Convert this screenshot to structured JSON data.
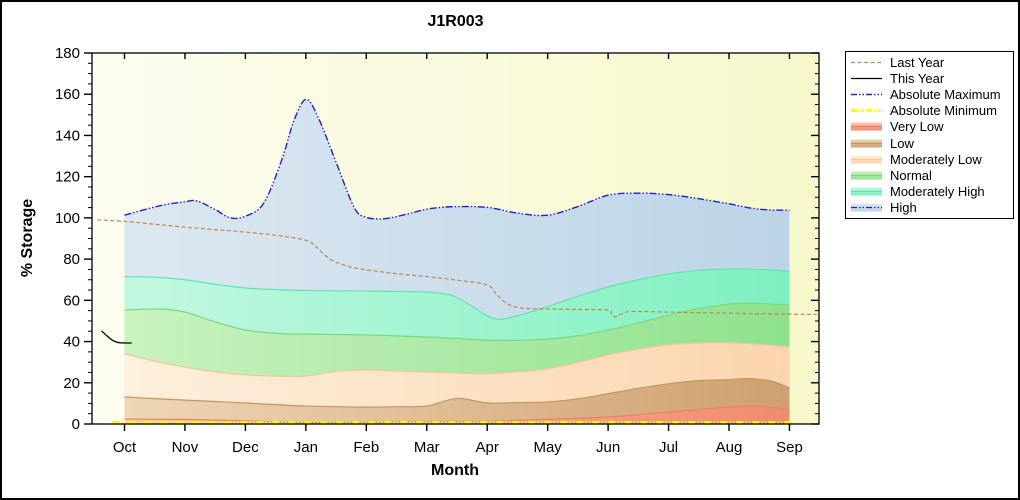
{
  "title": "J1R003",
  "chart_data": {
    "type": "area",
    "title": "J1R003",
    "xlabel": "Month",
    "ylabel": "% Storage",
    "x_categories": [
      "Oct",
      "Nov",
      "Dec",
      "Jan",
      "Feb",
      "Mar",
      "Apr",
      "May",
      "Jun",
      "Jul",
      "Aug",
      "Sep"
    ],
    "ylim": [
      0,
      180
    ],
    "y_tick_step": 20,
    "y_minor_tick_step": 5,
    "grid": false,
    "legend_position": "outside-right",
    "background_gradient": [
      "#fdfdf0",
      "#f8f8cc"
    ],
    "axis_color": "#000000",
    "bands": [
      {
        "name": "Very Low",
        "color_left": "#fbc9b6",
        "color_right": "#f08b6e",
        "edge_color": "#ee8163",
        "x": [
          0,
          1,
          2,
          3,
          4,
          5,
          6,
          7,
          8,
          9,
          10,
          10.5,
          11
        ],
        "top": [
          2.4,
          2.2,
          1.5,
          0.8,
          1.0,
          1.2,
          1.3,
          2.3,
          3.4,
          5.8,
          8.2,
          8.6,
          7.1
        ]
      },
      {
        "name": "Low",
        "color_left": "#eed6b6",
        "color_right": "#cfa070",
        "edge_color": "#c3955f",
        "x": [
          0,
          0.5,
          1,
          1.5,
          2,
          2.5,
          3,
          3.5,
          4,
          4.5,
          5,
          5.5,
          6,
          6.5,
          7,
          7.5,
          8,
          8.5,
          9,
          9.5,
          10,
          10.3,
          10.7,
          11
        ],
        "top": [
          13.1,
          12.3,
          11.6,
          10.9,
          10.2,
          9.4,
          8.7,
          8.4,
          8.2,
          8.4,
          8.7,
          12.4,
          10.2,
          10.4,
          10.7,
          12.2,
          14.7,
          17.3,
          19.5,
          21,
          21.5,
          22,
          20.8,
          17.5
        ]
      },
      {
        "name": "Moderately Low",
        "color_left": "#fdf0dd",
        "color_right": "#fbd5ad",
        "edge_color": "#f3c697",
        "x": [
          0,
          0.5,
          1,
          1.5,
          2,
          2.5,
          3,
          3.5,
          4,
          4.5,
          5,
          5.5,
          6,
          6.5,
          7,
          7.5,
          8,
          8.5,
          9,
          9.5,
          10,
          10.5,
          11
        ],
        "top": [
          34.1,
          30.5,
          27.6,
          25.3,
          23.9,
          23.2,
          23.3,
          25.6,
          26.2,
          25.7,
          25.2,
          24.7,
          24.4,
          25.3,
          26.8,
          29.9,
          33.5,
          36.3,
          38.4,
          39.3,
          39.4,
          38.6,
          37.3
        ]
      },
      {
        "name": "Normal",
        "color_left": "#c9f2bf",
        "color_right": "#8ee28c",
        "edge_color": "#7fd67e",
        "x": [
          0,
          0.6,
          1,
          1.5,
          2,
          2.5,
          3,
          4,
          5,
          5.5,
          6,
          6.5,
          7,
          7.5,
          8,
          8.5,
          9,
          9.5,
          10,
          10.4,
          11
        ],
        "top": [
          55.3,
          55.8,
          54.3,
          49.5,
          45.6,
          44,
          43.6,
          43.2,
          42.2,
          41.5,
          40.7,
          40.6,
          41.2,
          42.8,
          45.6,
          49,
          52.8,
          56,
          58.2,
          58.6,
          57.7
        ]
      },
      {
        "name": "Moderately High",
        "color_left": "#c2f8e1",
        "color_right": "#7df0c0",
        "edge_color": "#5fe5ad",
        "x": [
          0,
          0.5,
          1,
          1.5,
          2,
          2.5,
          3,
          3.5,
          4,
          4.5,
          5,
          5.4,
          5.7,
          6,
          6.2,
          6.5,
          7,
          7.5,
          8,
          8.5,
          9,
          9.5,
          10,
          10.5,
          11
        ],
        "top": [
          71.5,
          71.2,
          70,
          67.8,
          66,
          65.2,
          64.8,
          64.6,
          64.5,
          64.3,
          64,
          62.5,
          58,
          52.5,
          50.8,
          52.5,
          57,
          62,
          66.5,
          70,
          72.8,
          74.5,
          75.2,
          75,
          74.2
        ]
      },
      {
        "name": "High",
        "color_left": "#dce8f1",
        "color_right": "#bcd4e6",
        "edge_color": null,
        "x": [
          0,
          0.6,
          1,
          1.2,
          1.5,
          1.75,
          2,
          2.3,
          2.6,
          2.8,
          3,
          3.2,
          3.5,
          3.8,
          4,
          4.3,
          4.7,
          5,
          5.4,
          6,
          6.5,
          7,
          7.5,
          8,
          8.5,
          9,
          9.5,
          10,
          10.5,
          11
        ],
        "top": [
          101.3,
          106,
          107.8,
          108.2,
          104,
          100,
          100.8,
          107,
          128,
          147,
          157.5,
          149,
          127,
          105,
          100.3,
          99.6,
          102,
          104.2,
          105.4,
          105.1,
          102.3,
          101.3,
          105.5,
          111,
          112,
          111.3,
          109.3,
          106.8,
          104.2,
          103.7
        ]
      }
    ],
    "lines": [
      {
        "name": "Absolute Minimum",
        "color": "#ffff00",
        "width": 3,
        "dash": "dash-dot-dot",
        "x": [
          -0.2,
          11.05
        ],
        "y": [
          0.7,
          0.7
        ]
      },
      {
        "name": "Last Year",
        "color": "#bf8a52",
        "width": 1.2,
        "dash": "dash",
        "x": [
          -0.45,
          0,
          0.5,
          1,
          1.5,
          2,
          2.5,
          3,
          3.15,
          3.4,
          3.7,
          4,
          4.5,
          5,
          5.5,
          6,
          6.15,
          6.35,
          6.6,
          7,
          7.5,
          8,
          8.05,
          8.12,
          8.3,
          8.5,
          9,
          9.5,
          10,
          10.5,
          11,
          11.45
        ],
        "y": [
          99,
          98.3,
          96.9,
          95.5,
          94.3,
          93.1,
          91.6,
          89.2,
          86.5,
          80,
          76.5,
          74.8,
          73,
          71.5,
          69.8,
          67.5,
          63,
          58,
          56.2,
          55.8,
          55.6,
          55.3,
          53.5,
          52,
          54.3,
          54.6,
          54.3,
          54,
          53.8,
          53.5,
          53.3,
          53.2
        ]
      },
      {
        "name": "This Year",
        "color": "#000000",
        "width": 1.3,
        "dash": "solid",
        "x": [
          -0.38,
          -0.28,
          -0.18,
          -0.08,
          0.12
        ],
        "y": [
          45.2,
          42.5,
          40.3,
          39.4,
          39.3
        ]
      },
      {
        "name": "Absolute Maximum",
        "color": "#2020cc",
        "width": 1.4,
        "dash": "dash-dot-dot",
        "x": [
          0,
          0.6,
          1,
          1.2,
          1.5,
          1.75,
          2,
          2.3,
          2.6,
          2.8,
          3,
          3.2,
          3.5,
          3.8,
          4,
          4.3,
          4.7,
          5,
          5.4,
          6,
          6.5,
          7,
          7.5,
          8,
          8.5,
          9,
          9.5,
          10,
          10.5,
          11
        ],
        "y": [
          101.3,
          106,
          107.8,
          108.2,
          104,
          100,
          100.8,
          107,
          128,
          147,
          157.5,
          149,
          127,
          105,
          100.3,
          99.6,
          102,
          104.2,
          105.4,
          105.1,
          102.3,
          101.3,
          105.5,
          111,
          112,
          111.3,
          109.3,
          106.8,
          104.2,
          103.7
        ]
      }
    ]
  },
  "legend": {
    "items": [
      {
        "label": "Last Year",
        "swatch": "line",
        "color": "#bf8a52",
        "dash": "dash",
        "width": 1.2
      },
      {
        "label": "This Year",
        "swatch": "line",
        "color": "#000000",
        "dash": "solid",
        "width": 1.2
      },
      {
        "label": "Absolute Maximum",
        "swatch": "line",
        "color": "#2020cc",
        "dash": "dash-dot-dot",
        "width": 1.4
      },
      {
        "label": "Absolute Minimum",
        "swatch": "line",
        "color": "#ffff00",
        "dash": "dash-dot-dot",
        "width": 3
      },
      {
        "label": "Very Low",
        "swatch": "band",
        "fill_light": "#fbc9b6",
        "fill": "#f08b6e",
        "line": "#ee8163",
        "dash": "solid"
      },
      {
        "label": "Low",
        "swatch": "band",
        "fill_light": "#eed6b6",
        "fill": "#cfa070",
        "line": "#c3955f",
        "dash": "solid"
      },
      {
        "label": "Moderately Low",
        "swatch": "band",
        "fill_light": "#fdf0dd",
        "fill": "#fbd5ad",
        "line": "#f3c697",
        "dash": "solid"
      },
      {
        "label": "Normal",
        "swatch": "band",
        "fill_light": "#c9f2bf",
        "fill": "#8ee28c",
        "line": "#7fd67e",
        "dash": "solid"
      },
      {
        "label": "Moderately High",
        "swatch": "band",
        "fill_light": "#c2f8e1",
        "fill": "#7df0c0",
        "line": "#5fe5ad",
        "dash": "solid"
      },
      {
        "label": "High",
        "swatch": "band",
        "fill_light": "#dce8f1",
        "fill": "#bcd4e6",
        "line": "#2020cc",
        "dash": "dash-dot-dot"
      }
    ]
  }
}
